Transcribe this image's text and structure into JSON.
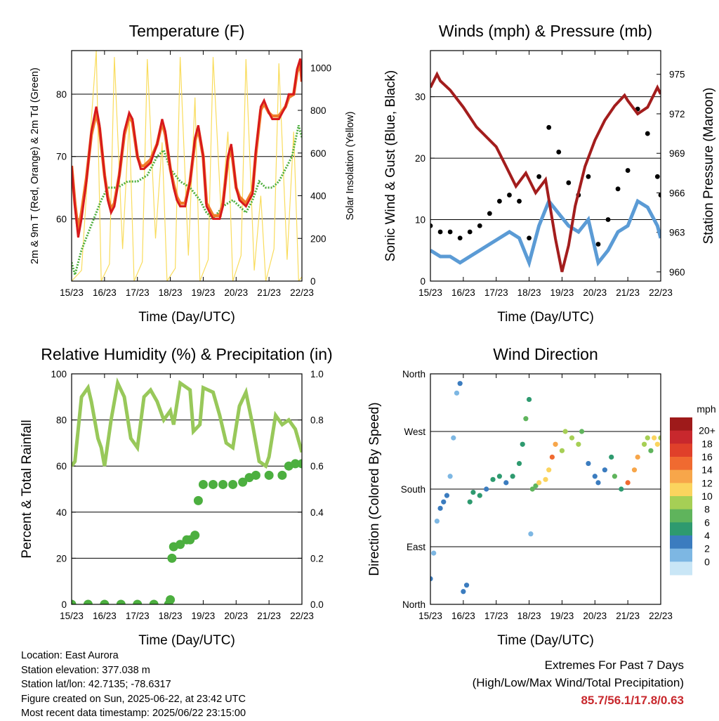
{
  "x_ticks": [
    "15/23",
    "16/23",
    "17/23",
    "18/23",
    "19/23",
    "20/23",
    "21/23",
    "22/23"
  ],
  "xlabel": "Time (Day/UTC)",
  "info": {
    "location": "Location: East Aurora",
    "elevation": "Station elevation: 377.038 m",
    "latlon": "Station lat/lon: 42.7135; -78.6317",
    "created": "Figure created on Sun, 2025-06-22, at 23:42 UTC",
    "recent": "Most recent data timestamp: 2025/06/22 23:15:00"
  },
  "extremes": {
    "title": "Extremes For Past 7 Days",
    "subtitle": "(High/Low/Max Wind/Total Precipitation)",
    "values": "85.7/56.1/17.8/0.63"
  },
  "colors": {
    "temp2m": "#d7191c",
    "temp9m": "#f07a2a",
    "dewpoint": "#4cae3c",
    "solar": "#f9dc5c",
    "wind": "#5b9bd5",
    "gust": "#000000",
    "pressure": "#a31d1d",
    "rh": "#98c85a",
    "precip": "#4caf3f"
  },
  "chart_data": [
    {
      "type": "line",
      "title": "Temperature (F)",
      "ylabel": "2m & 9m T (Red, Orange) & 2m Td (Green)",
      "y2label": "Solar Insolation (Yellow)",
      "xlabel": "Time (Day/UTC)",
      "xlim": [
        0,
        7
      ],
      "ylim": [
        50,
        87
      ],
      "y_ticks": [
        60,
        70,
        80
      ],
      "y2lim": [
        0,
        1080
      ],
      "y2_ticks": [
        0,
        200,
        400,
        600,
        800,
        1000
      ],
      "grid": true,
      "series": [
        {
          "x": [
            0,
            0.1,
            0.2,
            0.3,
            0.45,
            0.6,
            0.75,
            0.85,
            1.0,
            1.1,
            1.2,
            1.3,
            1.45,
            1.6,
            1.75,
            1.85,
            2.0,
            2.1,
            2.2,
            2.4,
            2.6,
            2.75,
            2.85,
            3.0,
            3.1,
            3.2,
            3.3,
            3.45,
            3.6,
            3.75,
            3.85,
            4.0,
            4.1,
            4.3,
            4.5,
            4.6,
            4.75,
            4.85,
            5.0,
            5.1,
            5.3,
            5.5,
            5.6,
            5.75,
            5.85,
            6.0,
            6.1,
            6.3,
            6.5,
            6.6,
            6.75,
            6.85,
            6.95,
            7.0
          ],
          "values": [
            68.5,
            62,
            57,
            60,
            66,
            74,
            78,
            75,
            67,
            63,
            61,
            62,
            67,
            74,
            77,
            76,
            70,
            68,
            68,
            69,
            72,
            76,
            74,
            68,
            65,
            63,
            62,
            62,
            66,
            73,
            75,
            70,
            62,
            60,
            60,
            62,
            70,
            72,
            65,
            63,
            62,
            64,
            71,
            78,
            79,
            77,
            76,
            76,
            78,
            80,
            80,
            84,
            85.7,
            82
          ]
        },
        {
          "x": [
            0,
            0.1,
            0.2,
            0.3,
            0.45,
            0.6,
            0.75,
            0.85,
            1.0,
            1.1,
            1.2,
            1.3,
            1.45,
            1.6,
            1.75,
            1.85,
            2.0,
            2.1,
            2.2,
            2.4,
            2.6,
            2.75,
            2.85,
            3.0,
            3.1,
            3.2,
            3.3,
            3.45,
            3.6,
            3.75,
            3.85,
            4.0,
            4.1,
            4.3,
            4.5,
            4.6,
            4.75,
            4.85,
            5.0,
            5.1,
            5.3,
            5.5,
            5.6,
            5.75,
            5.85,
            6.0,
            6.1,
            6.3,
            6.5,
            6.6,
            6.75,
            6.85,
            6.95,
            7.0
          ],
          "values": [
            68.5,
            62.5,
            58,
            61,
            66.5,
            73.5,
            77,
            74.5,
            67,
            63.5,
            61.5,
            62.5,
            67,
            73.5,
            76.5,
            75.5,
            70,
            68.5,
            68.5,
            69.5,
            72,
            75.5,
            73.5,
            68,
            65.5,
            63.5,
            62.5,
            62.5,
            66,
            72.5,
            74.5,
            70,
            62.5,
            60.5,
            60.5,
            62.5,
            69.5,
            71.5,
            65,
            63.5,
            62.5,
            64.5,
            70.5,
            77.5,
            78.5,
            77,
            76.5,
            76.5,
            78,
            79.5,
            80,
            83.5,
            85,
            82
          ]
        },
        {
          "x": [
            0,
            0.1,
            0.3,
            0.6,
            0.9,
            1.1,
            1.4,
            1.7,
            2.0,
            2.3,
            2.6,
            2.8,
            3.0,
            3.3,
            3.6,
            3.9,
            4.1,
            4.3,
            4.6,
            4.9,
            5.1,
            5.3,
            5.5,
            5.7,
            5.9,
            6.1,
            6.3,
            6.5,
            6.7,
            6.9,
            7.0
          ],
          "values": [
            53,
            51,
            55,
            59,
            63,
            65,
            65,
            66,
            66,
            67,
            70,
            71,
            68,
            66,
            65,
            63,
            61,
            60,
            62,
            63,
            62,
            61,
            63,
            66,
            65,
            65,
            66,
            68,
            70,
            75,
            73
          ]
        },
        {
          "x": [
            0,
            0.3,
            0.55,
            0.75,
            0.9,
            1.15,
            1.3,
            1.55,
            1.75,
            1.9,
            2.15,
            2.3,
            2.55,
            2.75,
            2.9,
            3.15,
            3.3,
            3.55,
            3.75,
            3.9,
            4.15,
            4.3,
            4.55,
            4.75,
            4.9,
            5.15,
            5.3,
            5.55,
            5.75,
            5.9,
            6.15,
            6.3,
            6.55,
            6.75,
            6.9,
            7.0
          ],
          "values": [
            0,
            50,
            650,
            1080,
            0,
            80,
            1050,
            150,
            760,
            0,
            90,
            1040,
            200,
            650,
            0,
            60,
            1050,
            120,
            860,
            0,
            100,
            1050,
            300,
            700,
            0,
            120,
            1040,
            50,
            400,
            0,
            150,
            1020,
            100,
            700,
            0,
            20
          ]
        }
      ],
      "series_names": [
        "2m T",
        "9m T",
        "2m Td",
        "Solar Insolation"
      ]
    },
    {
      "type": "line",
      "title": "Winds (mph) & Pressure (mb)",
      "ylabel": "Sonic Wind & Gust (Blue, Black)",
      "y2label": "Station Pressure (Maroon)",
      "xlabel": "Time (Day/UTC)",
      "xlim": [
        0,
        7
      ],
      "ylim": [
        0,
        37.5
      ],
      "y_ticks": [
        0,
        10,
        20,
        30
      ],
      "y2lim": [
        959.3,
        976.8
      ],
      "y2_ticks": [
        960,
        963,
        966,
        969,
        972,
        975
      ],
      "grid": true,
      "series": [
        {
          "x": [
            0,
            0.3,
            0.6,
            0.9,
            1.2,
            1.5,
            1.8,
            2.1,
            2.4,
            2.7,
            3.0,
            3.3,
            3.6,
            3.9,
            4.2,
            4.5,
            4.8,
            5.1,
            5.4,
            5.7,
            6.0,
            6.3,
            6.6,
            6.9,
            7.0
          ],
          "values": [
            5,
            4,
            4,
            3,
            4,
            5,
            6,
            7,
            8,
            7,
            3,
            9,
            13,
            11,
            9,
            8,
            10,
            3,
            5,
            8,
            9,
            13,
            12,
            9,
            7
          ]
        },
        {
          "x": [
            0,
            0.3,
            0.6,
            0.9,
            1.2,
            1.5,
            1.8,
            2.1,
            2.4,
            2.7,
            3.0,
            3.3,
            3.6,
            3.9,
            4.2,
            4.5,
            4.8,
            5.1,
            5.4,
            5.7,
            6.0,
            6.3,
            6.6,
            6.9,
            7.0
          ],
          "values": [
            9,
            8,
            8,
            7,
            8,
            9,
            11,
            13,
            14,
            13,
            7,
            17,
            25,
            21,
            16,
            14,
            17,
            6,
            10,
            15,
            18,
            28,
            24,
            17,
            14
          ]
        },
        {
          "x": [
            0,
            0.2,
            0.3,
            0.6,
            1.0,
            1.4,
            1.6,
            2.0,
            2.3,
            2.6,
            2.9,
            3.2,
            3.5,
            3.8,
            4.0,
            4.2,
            4.4,
            4.7,
            5.0,
            5.3,
            5.6,
            5.9,
            6.0,
            6.3,
            6.6,
            6.9,
            7.0
          ],
          "values": [
            974,
            975,
            974.5,
            973.8,
            972.5,
            971,
            970.5,
            969.5,
            968,
            966.5,
            967.5,
            966,
            967,
            962.5,
            960,
            962,
            965,
            968,
            970,
            971.5,
            972.6,
            973.4,
            973,
            972,
            972.5,
            974,
            973.5
          ]
        }
      ],
      "series_names": [
        "Sonic Wind",
        "Gust",
        "Station Pressure"
      ]
    },
    {
      "type": "line",
      "title": "Relative Humidity (%) & Precipitation (in)",
      "ylabel": "Percent & Total Rainfall",
      "xlabel": "Time (Day/UTC)",
      "xlim": [
        0,
        7
      ],
      "ylim": [
        0,
        100
      ],
      "y_ticks": [
        0,
        20,
        40,
        60,
        80,
        100
      ],
      "y2lim": [
        0,
        1.0
      ],
      "y2_ticks": [
        "0.0",
        "0.2",
        "0.4",
        "0.6",
        "0.8",
        "1.0"
      ],
      "grid": true,
      "series": [
        {
          "x": [
            0,
            0.1,
            0.3,
            0.5,
            0.6,
            0.8,
            0.9,
            1.0,
            1.2,
            1.4,
            1.6,
            1.8,
            2.0,
            2.2,
            2.4,
            2.6,
            2.8,
            3.0,
            3.1,
            3.3,
            3.6,
            3.7,
            3.9,
            4.0,
            4.3,
            4.5,
            4.7,
            4.9,
            5.1,
            5.3,
            5.5,
            5.7,
            5.9,
            6.0,
            6.2,
            6.4,
            6.6,
            6.8,
            7.0
          ],
          "values": [
            60,
            62,
            90,
            94,
            88,
            72,
            68,
            60,
            80,
            96,
            90,
            72,
            68,
            90,
            93,
            88,
            80,
            84,
            78,
            96,
            93,
            75,
            78,
            94,
            92,
            82,
            70,
            68,
            86,
            92,
            78,
            62,
            60,
            64,
            82,
            78,
            80,
            76,
            66
          ]
        },
        {
          "x": [
            0,
            0.5,
            1.0,
            1.5,
            2.0,
            2.5,
            2.95,
            3.0,
            3.05,
            3.1,
            3.3,
            3.5,
            3.6,
            3.75,
            3.85,
            4.0,
            4.3,
            4.6,
            4.9,
            5.2,
            5.4,
            5.6,
            6.0,
            6.4,
            6.6,
            6.8,
            7.0
          ],
          "values": [
            0,
            0,
            0,
            0,
            0,
            0,
            0,
            0.02,
            0.2,
            0.25,
            0.26,
            0.28,
            0.28,
            0.3,
            0.45,
            0.52,
            0.52,
            0.52,
            0.52,
            0.53,
            0.55,
            0.56,
            0.56,
            0.56,
            0.6,
            0.61,
            0.61
          ]
        }
      ],
      "series_names": [
        "Relative Humidity",
        "Total Precipitation"
      ]
    },
    {
      "type": "scatter",
      "title": "Wind Direction",
      "ylabel": "Direction (Colored By Speed)",
      "xlabel": "Time (Day/UTC)",
      "xlim": [
        0,
        7
      ],
      "ylim": [
        0,
        360
      ],
      "y_ticks": [
        {
          "v": 0,
          "label": "North"
        },
        {
          "v": 90,
          "label": "East"
        },
        {
          "v": 180,
          "label": "South"
        },
        {
          "v": 270,
          "label": "West"
        },
        {
          "v": 360,
          "label": "North"
        }
      ],
      "grid": true,
      "colorbar": {
        "title": "mph",
        "labels": [
          "20+",
          "18",
          "16",
          "14",
          "12",
          "10",
          "8",
          "6",
          "4",
          "2",
          "0"
        ],
        "colors": [
          "#9e1a1a",
          "#c8282d",
          "#e0402a",
          "#f06a30",
          "#f7a64a",
          "#fbd45e",
          "#a6cf55",
          "#5fb45c",
          "#2e9a6f",
          "#3b7cbf",
          "#7db7e3",
          "#c9e6f6"
        ]
      },
      "points": [
        {
          "x": 0.0,
          "y": 40,
          "s": 4
        },
        {
          "x": 0.1,
          "y": 80,
          "s": 3
        },
        {
          "x": 0.2,
          "y": 130,
          "s": 2
        },
        {
          "x": 0.3,
          "y": 150,
          "s": 4
        },
        {
          "x": 0.4,
          "y": 160,
          "s": 4
        },
        {
          "x": 0.5,
          "y": 170,
          "s": 5
        },
        {
          "x": 0.6,
          "y": 200,
          "s": 3
        },
        {
          "x": 0.7,
          "y": 260,
          "s": 2
        },
        {
          "x": 0.8,
          "y": 330,
          "s": 2
        },
        {
          "x": 0.9,
          "y": 345,
          "s": 4
        },
        {
          "x": 1.0,
          "y": 20,
          "s": 4
        },
        {
          "x": 1.1,
          "y": 30,
          "s": 5
        },
        {
          "x": 1.2,
          "y": 160,
          "s": 6
        },
        {
          "x": 1.3,
          "y": 175,
          "s": 6
        },
        {
          "x": 1.5,
          "y": 170,
          "s": 6
        },
        {
          "x": 1.7,
          "y": 180,
          "s": 5
        },
        {
          "x": 1.9,
          "y": 195,
          "s": 6
        },
        {
          "x": 2.1,
          "y": 200,
          "s": 6
        },
        {
          "x": 2.3,
          "y": 190,
          "s": 5
        },
        {
          "x": 2.5,
          "y": 200,
          "s": 6
        },
        {
          "x": 2.7,
          "y": 220,
          "s": 7
        },
        {
          "x": 2.8,
          "y": 250,
          "s": 7
        },
        {
          "x": 2.9,
          "y": 290,
          "s": 8
        },
        {
          "x": 3.0,
          "y": 320,
          "s": 7
        },
        {
          "x": 3.05,
          "y": 110,
          "s": 3
        },
        {
          "x": 3.1,
          "y": 180,
          "s": 8
        },
        {
          "x": 3.2,
          "y": 185,
          "s": 9
        },
        {
          "x": 3.3,
          "y": 190,
          "s": 12
        },
        {
          "x": 3.5,
          "y": 195,
          "s": 13
        },
        {
          "x": 3.6,
          "y": 210,
          "s": 12
        },
        {
          "x": 3.7,
          "y": 230,
          "s": 16
        },
        {
          "x": 3.8,
          "y": 250,
          "s": 14
        },
        {
          "x": 4.0,
          "y": 240,
          "s": 11
        },
        {
          "x": 4.1,
          "y": 270,
          "s": 10
        },
        {
          "x": 4.3,
          "y": 260,
          "s": 10
        },
        {
          "x": 4.5,
          "y": 250,
          "s": 10
        },
        {
          "x": 4.6,
          "y": 270,
          "s": 9
        },
        {
          "x": 4.8,
          "y": 220,
          "s": 5
        },
        {
          "x": 5.0,
          "y": 200,
          "s": 4
        },
        {
          "x": 5.1,
          "y": 190,
          "s": 4
        },
        {
          "x": 5.3,
          "y": 210,
          "s": 4
        },
        {
          "x": 5.5,
          "y": 230,
          "s": 6
        },
        {
          "x": 5.6,
          "y": 200,
          "s": 8
        },
        {
          "x": 5.8,
          "y": 180,
          "s": 6
        },
        {
          "x": 6.0,
          "y": 190,
          "s": 16
        },
        {
          "x": 6.2,
          "y": 210,
          "s": 15
        },
        {
          "x": 6.3,
          "y": 230,
          "s": 14
        },
        {
          "x": 6.5,
          "y": 250,
          "s": 11
        },
        {
          "x": 6.6,
          "y": 260,
          "s": 10
        },
        {
          "x": 6.7,
          "y": 240,
          "s": 8
        },
        {
          "x": 6.8,
          "y": 260,
          "s": 13
        },
        {
          "x": 6.9,
          "y": 250,
          "s": 12
        },
        {
          "x": 7.0,
          "y": 260,
          "s": 10
        }
      ]
    }
  ]
}
